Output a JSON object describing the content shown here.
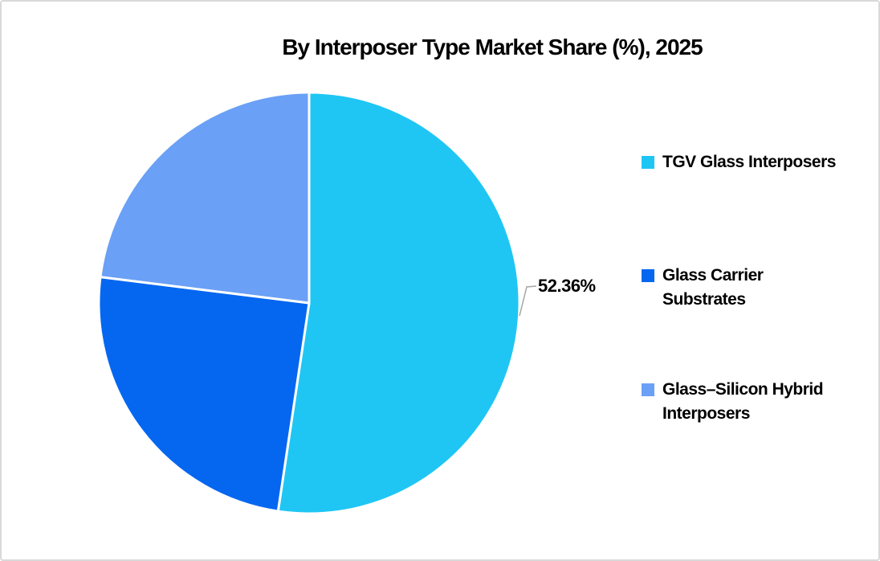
{
  "chart": {
    "title": "By Interposer Type Market Share (%), 2025"
  },
  "chart_data": {
    "type": "pie",
    "title": "By Interposer Type Market Share (%), 2025",
    "start_angle_deg": 0,
    "direction": "clockwise",
    "legend_position": "right",
    "series": [
      {
        "name": "TGV Glass Interposers",
        "value": 52.36,
        "color": "#1FC6F4",
        "data_label": "52.36%"
      },
      {
        "name": "Glass Carrier Substrates",
        "value": 24.61,
        "color": "#0567F0",
        "data_label": ""
      },
      {
        "name": "Glass–Silicon Hybrid Interposers",
        "value": 23.03,
        "color": "#6AA0F6",
        "data_label": ""
      }
    ]
  },
  "style": {
    "slice_border_color": "#FFFFFF",
    "leader_line_color": "#A6A6A6",
    "canvas_border_color": "#D9D9D9",
    "title_color": "#000000"
  }
}
